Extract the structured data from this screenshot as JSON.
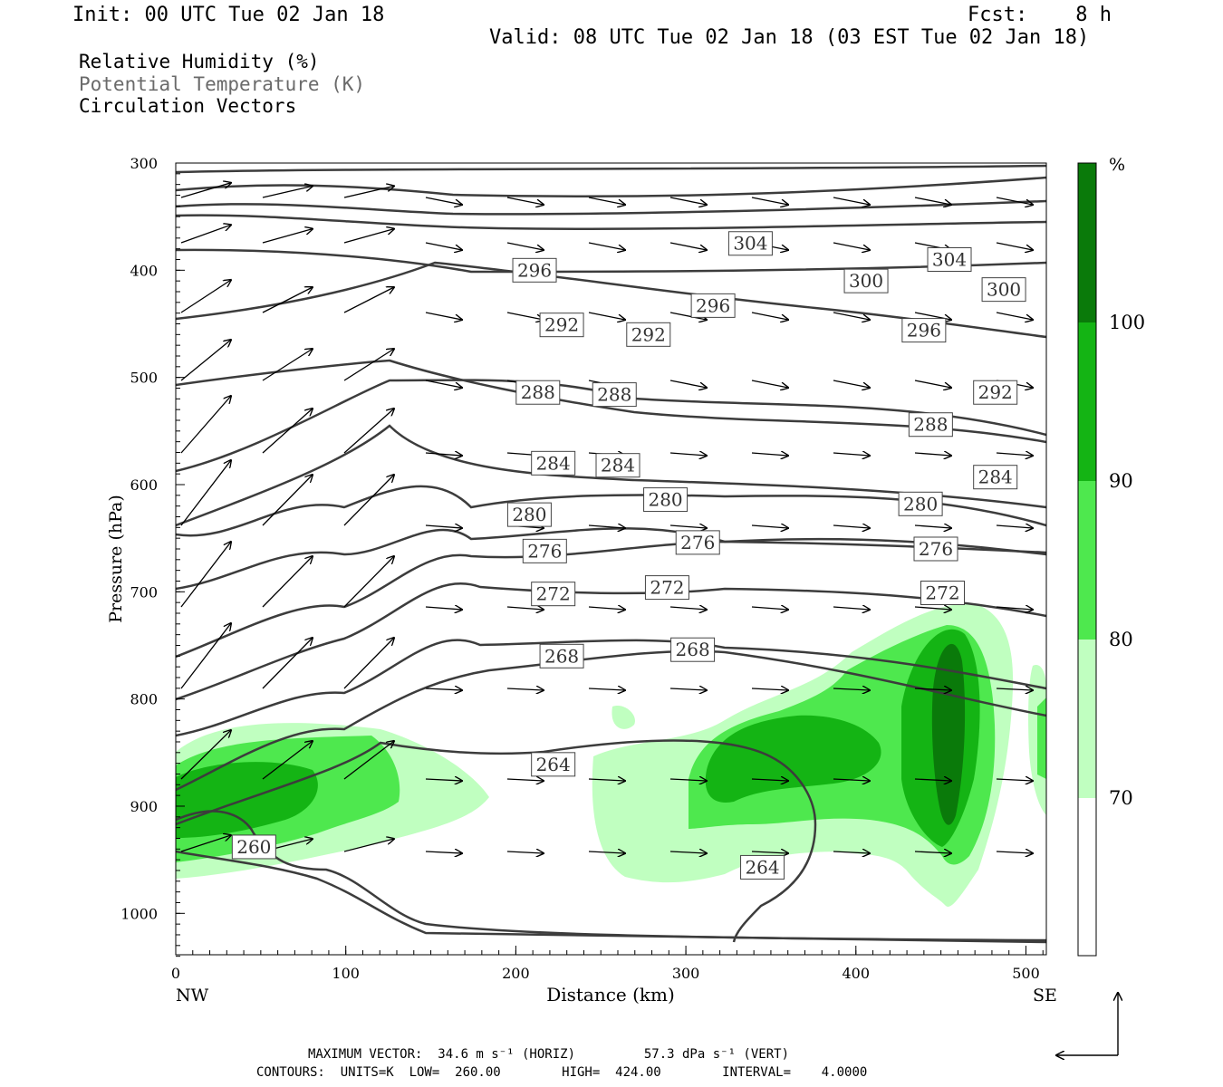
{
  "header": {
    "init": "Init: 00 UTC Tue 02 Jan 18",
    "fcst": "Fcst:    8 h",
    "valid": "Valid: 08 UTC Tue 02 Jan 18 (03 EST Tue 02 Jan 18)"
  },
  "fields": {
    "rh": "Relative Humidity (%)",
    "theta": "Potential Temperature (K)",
    "vectors": "Circulation Vectors"
  },
  "footer": {
    "line1": "MAXIMUM VECTOR:  34.6 m s⁻¹ (HORIZ)         57.3 dPa s⁻¹ (VERT)",
    "line2": "CONTOURS:  UNITS=K  LOW=  260.00        HIGH=  424.00        INTERVAL=    4.0000"
  },
  "colors": {
    "rh_70_80": "#c0ffc0",
    "rh_80_90": "#4ee84e",
    "rh_90_100": "#14b414",
    "rh_100": "#0a7a0a",
    "contour": "#3c3c3c"
  },
  "chart_data": {
    "type": "cross-section",
    "xlabel": "Distance (km)",
    "ylabel": "Pressure (hPa)",
    "xlim": [
      0,
      512
    ],
    "ylim": [
      1040,
      300
    ],
    "x_ticks": [
      0,
      100,
      200,
      300,
      400,
      500
    ],
    "y_ticks": [
      300,
      400,
      500,
      600,
      700,
      800,
      900,
      1000
    ],
    "x_end_labels": {
      "left": "NW",
      "right": "SE"
    },
    "colorbar": {
      "unit": "%",
      "levels": [
        70,
        80,
        90,
        100
      ]
    },
    "contour_labels": [
      {
        "value": "304",
        "x": 338,
        "p": 375
      },
      {
        "value": "304",
        "x": 455,
        "p": 390
      },
      {
        "value": "296",
        "x": 211,
        "p": 400
      },
      {
        "value": "300",
        "x": 406,
        "p": 410
      },
      {
        "value": "300",
        "x": 487,
        "p": 418
      },
      {
        "value": "296",
        "x": 316,
        "p": 433
      },
      {
        "value": "292",
        "x": 227,
        "p": 451
      },
      {
        "value": "292",
        "x": 278,
        "p": 460
      },
      {
        "value": "296",
        "x": 440,
        "p": 456
      },
      {
        "value": "288",
        "x": 213,
        "p": 514
      },
      {
        "value": "288",
        "x": 258,
        "p": 516
      },
      {
        "value": "292",
        "x": 482,
        "p": 514
      },
      {
        "value": "288",
        "x": 444,
        "p": 544
      },
      {
        "value": "284",
        "x": 222,
        "p": 580
      },
      {
        "value": "284",
        "x": 260,
        "p": 582
      },
      {
        "value": "284",
        "x": 482,
        "p": 593
      },
      {
        "value": "280",
        "x": 208,
        "p": 628
      },
      {
        "value": "280",
        "x": 288,
        "p": 614
      },
      {
        "value": "280",
        "x": 438,
        "p": 618
      },
      {
        "value": "276",
        "x": 217,
        "p": 662
      },
      {
        "value": "276",
        "x": 307,
        "p": 654
      },
      {
        "value": "276",
        "x": 447,
        "p": 660
      },
      {
        "value": "272",
        "x": 222,
        "p": 702
      },
      {
        "value": "272",
        "x": 289,
        "p": 696
      },
      {
        "value": "272",
        "x": 451,
        "p": 701
      },
      {
        "value": "268",
        "x": 227,
        "p": 760
      },
      {
        "value": "268",
        "x": 304,
        "p": 754
      },
      {
        "value": "264",
        "x": 222,
        "p": 861
      },
      {
        "value": "264",
        "x": 345,
        "p": 957
      },
      {
        "value": "260",
        "x": 46,
        "p": 938
      }
    ],
    "max_vector_horiz": "34.6 m s⁻¹",
    "max_vector_vert": "57.3 dPa s⁻¹",
    "contour_units": "K",
    "contour_low": 260.0,
    "contour_high": 424.0,
    "contour_interval": 4.0
  }
}
